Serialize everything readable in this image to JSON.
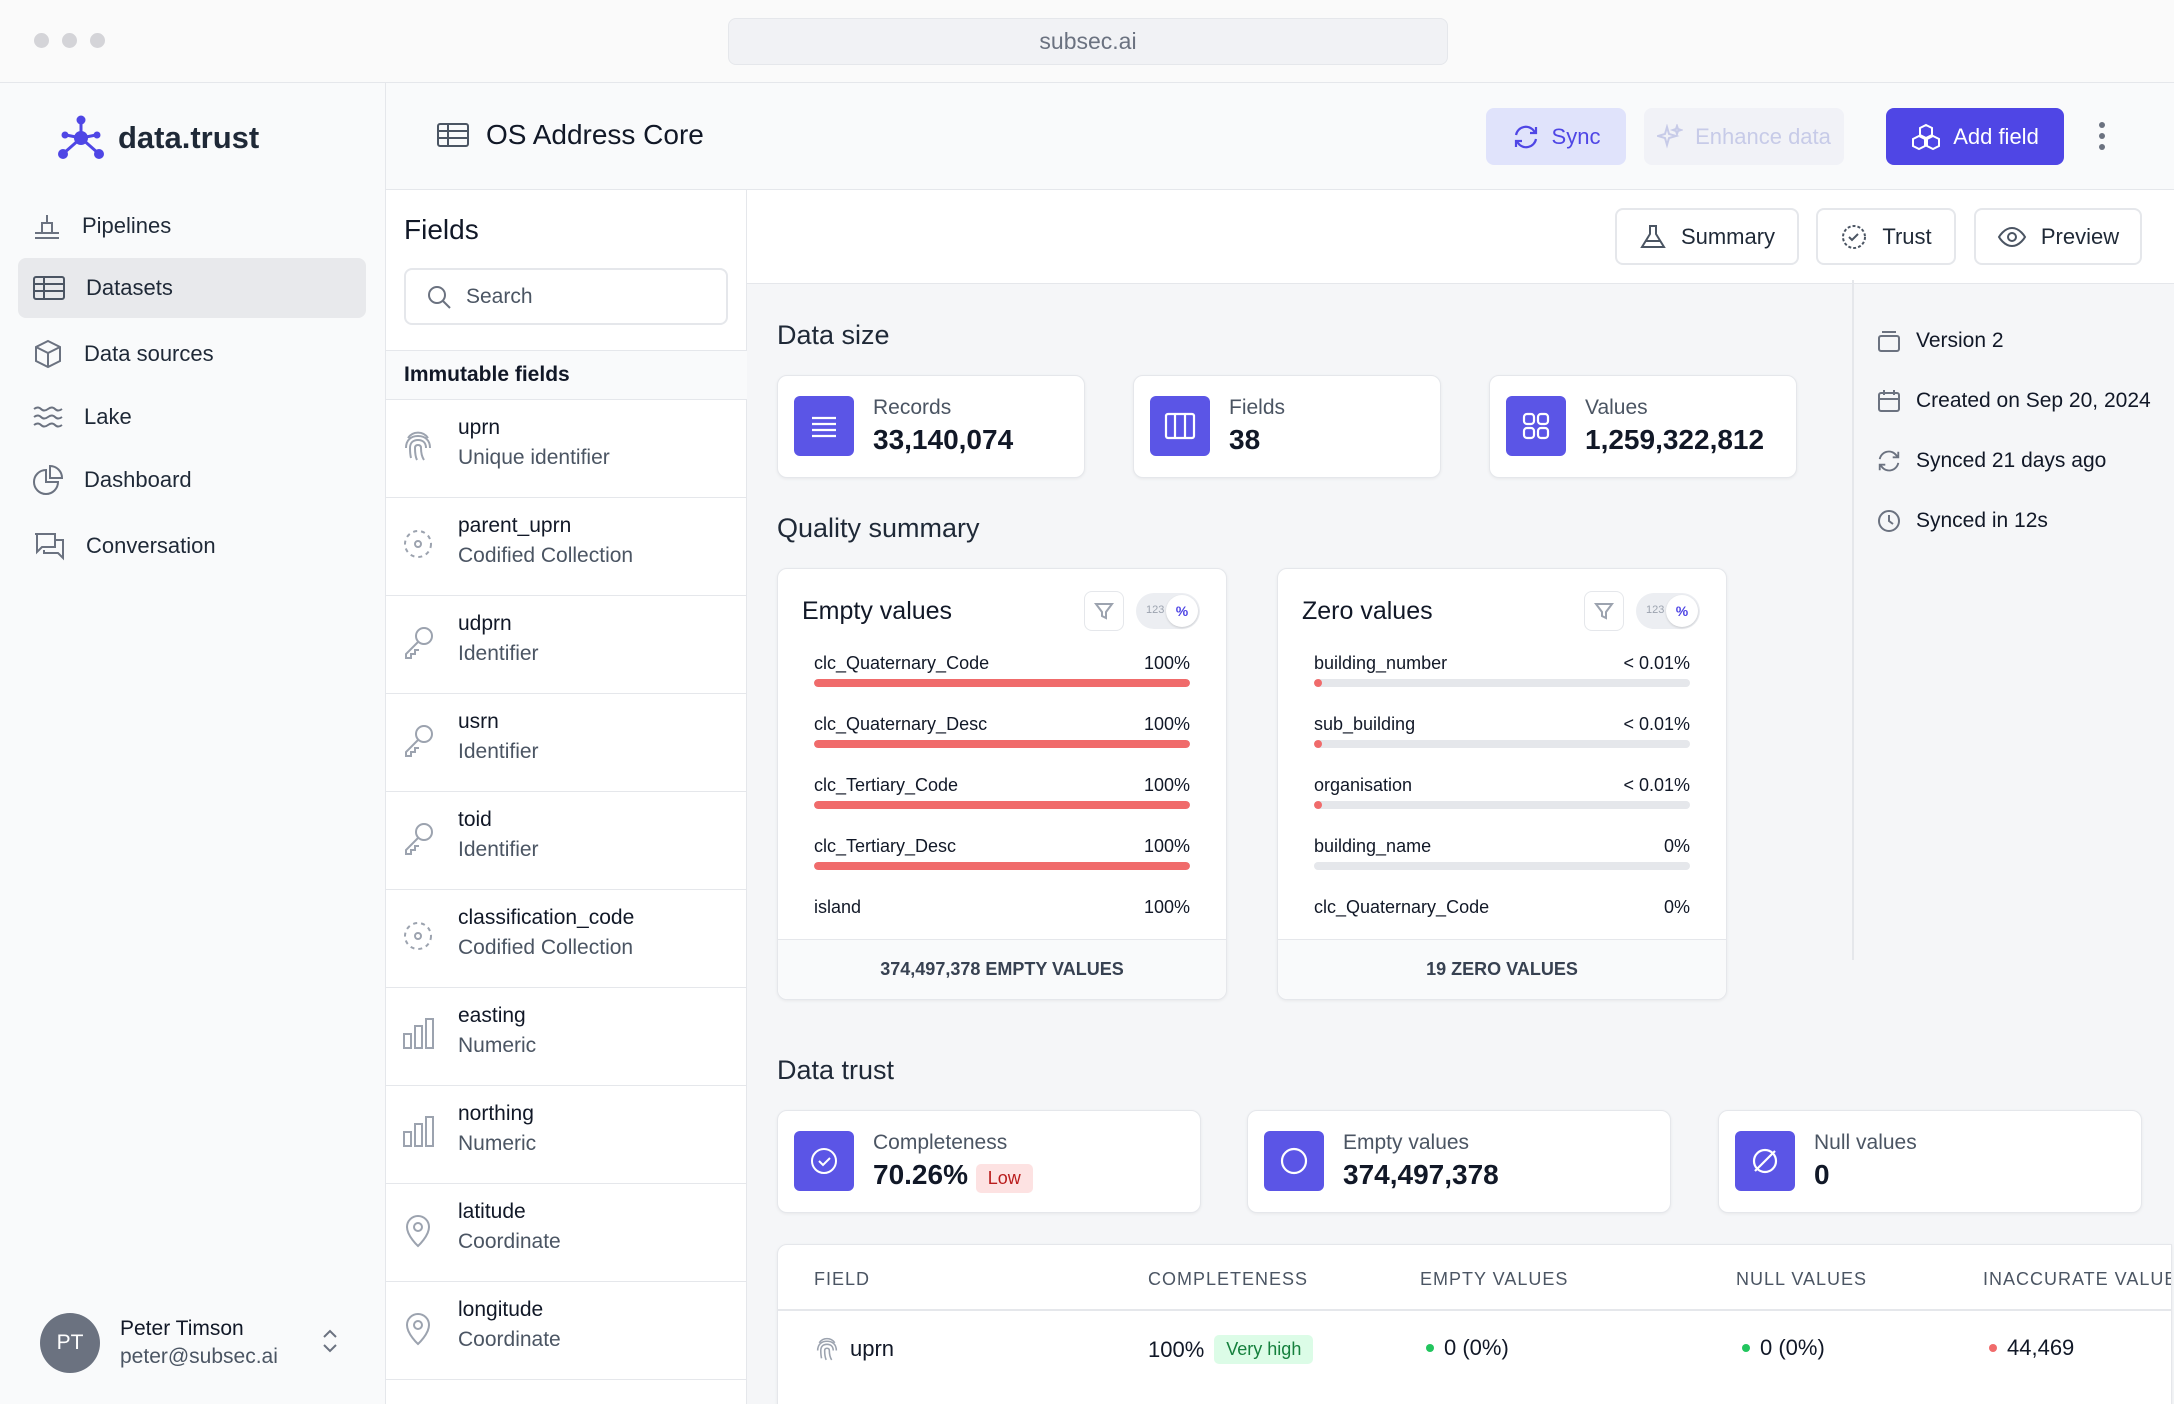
{
  "browser": {
    "url": "subsec.ai"
  },
  "sidebar": {
    "brand": "data.trust",
    "items": [
      {
        "label": "Pipelines",
        "icon": "pipeline-icon"
      },
      {
        "label": "Datasets",
        "icon": "table-icon"
      },
      {
        "label": "Data sources",
        "icon": "cube-icon"
      },
      {
        "label": "Lake",
        "icon": "waves-icon"
      },
      {
        "label": "Dashboard",
        "icon": "pie-chart-icon"
      },
      {
        "label": "Conversation",
        "icon": "chat-icon"
      }
    ],
    "active": "Datasets",
    "user": {
      "initials": "PT",
      "name": "Peter Timson",
      "email": "peter@subsec.ai"
    }
  },
  "header": {
    "title": "OS Address Core",
    "sync_label": "Sync",
    "enhance_label": "Enhance data",
    "add_label": "Add field"
  },
  "fields_panel": {
    "title": "Fields",
    "search_placeholder": "Search",
    "group_label": "Immutable fields",
    "fields": [
      {
        "name": "uprn",
        "type": "Unique identifier",
        "icon": "fingerprint-icon"
      },
      {
        "name": "parent_uprn",
        "type": "Codified Collection",
        "icon": "collection-icon"
      },
      {
        "name": "udprn",
        "type": "Identifier",
        "icon": "key-icon"
      },
      {
        "name": "usrn",
        "type": "Identifier",
        "icon": "key-icon"
      },
      {
        "name": "toid",
        "type": "Identifier",
        "icon": "key-icon"
      },
      {
        "name": "classification_code",
        "type": "Codified Collection",
        "icon": "collection-icon"
      },
      {
        "name": "easting",
        "type": "Numeric",
        "icon": "bar-chart-icon"
      },
      {
        "name": "northing",
        "type": "Numeric",
        "icon": "bar-chart-icon"
      },
      {
        "name": "latitude",
        "type": "Coordinate",
        "icon": "map-pin-icon"
      },
      {
        "name": "longitude",
        "type": "Coordinate",
        "icon": "map-pin-icon"
      }
    ]
  },
  "tabs": {
    "summary": "Summary",
    "trust": "Trust",
    "preview": "Preview"
  },
  "data_size": {
    "title": "Data size",
    "records": {
      "label": "Records",
      "value": "33,140,074"
    },
    "fields": {
      "label": "Fields",
      "value": "38"
    },
    "values": {
      "label": "Values",
      "value": "1,259,322,812"
    }
  },
  "meta": {
    "version": "Version 2",
    "created": "Created on Sep 20, 2024",
    "synced_ago": "Synced 21 days ago",
    "synced_in": "Synced in 12s"
  },
  "quality": {
    "title": "Quality summary",
    "toggle_num": "123",
    "toggle_pct": "%",
    "empty": {
      "title": "Empty values",
      "footer": "374,497,378 EMPTY VALUES",
      "rows": [
        {
          "name": "clc_Quaternary_Code",
          "pct": "100%",
          "fraction": 1.0
        },
        {
          "name": "clc_Quaternary_Desc",
          "pct": "100%",
          "fraction": 1.0
        },
        {
          "name": "clc_Tertiary_Code",
          "pct": "100%",
          "fraction": 1.0
        },
        {
          "name": "clc_Tertiary_Desc",
          "pct": "100%",
          "fraction": 1.0
        },
        {
          "name": "island",
          "pct": "100%",
          "fraction": 1.0
        }
      ]
    },
    "zero": {
      "title": "Zero values",
      "footer": "19 ZERO VALUES",
      "rows": [
        {
          "name": "building_number",
          "pct": "< 0.01%",
          "fraction": 0.0001
        },
        {
          "name": "sub_building",
          "pct": "< 0.01%",
          "fraction": 0.0001
        },
        {
          "name": "organisation",
          "pct": "< 0.01%",
          "fraction": 0.0001
        },
        {
          "name": "building_name",
          "pct": "0%",
          "fraction": 0
        },
        {
          "name": "clc_Quaternary_Code",
          "pct": "0%",
          "fraction": 0
        }
      ]
    }
  },
  "trust": {
    "title": "Data trust",
    "completeness": {
      "label": "Completeness",
      "value": "70.26%",
      "badge": "Low"
    },
    "empty": {
      "label": "Empty values",
      "value": "374,497,378"
    },
    "null": {
      "label": "Null values",
      "value": "0"
    },
    "table": {
      "headers": [
        "FIELD",
        "COMPLETENESS",
        "EMPTY VALUES",
        "NULL VALUES",
        "INACCURATE VALUES"
      ],
      "rows": [
        {
          "field": "uprn",
          "completeness": "100%",
          "badge": "Very high",
          "empty": "0 (0%)",
          "null": "0 (0%)",
          "inaccurate": "44,469"
        }
      ]
    }
  },
  "colors": {
    "accent": "#4f46e5",
    "bad": "#f06b6b",
    "good": "#22c55e"
  }
}
